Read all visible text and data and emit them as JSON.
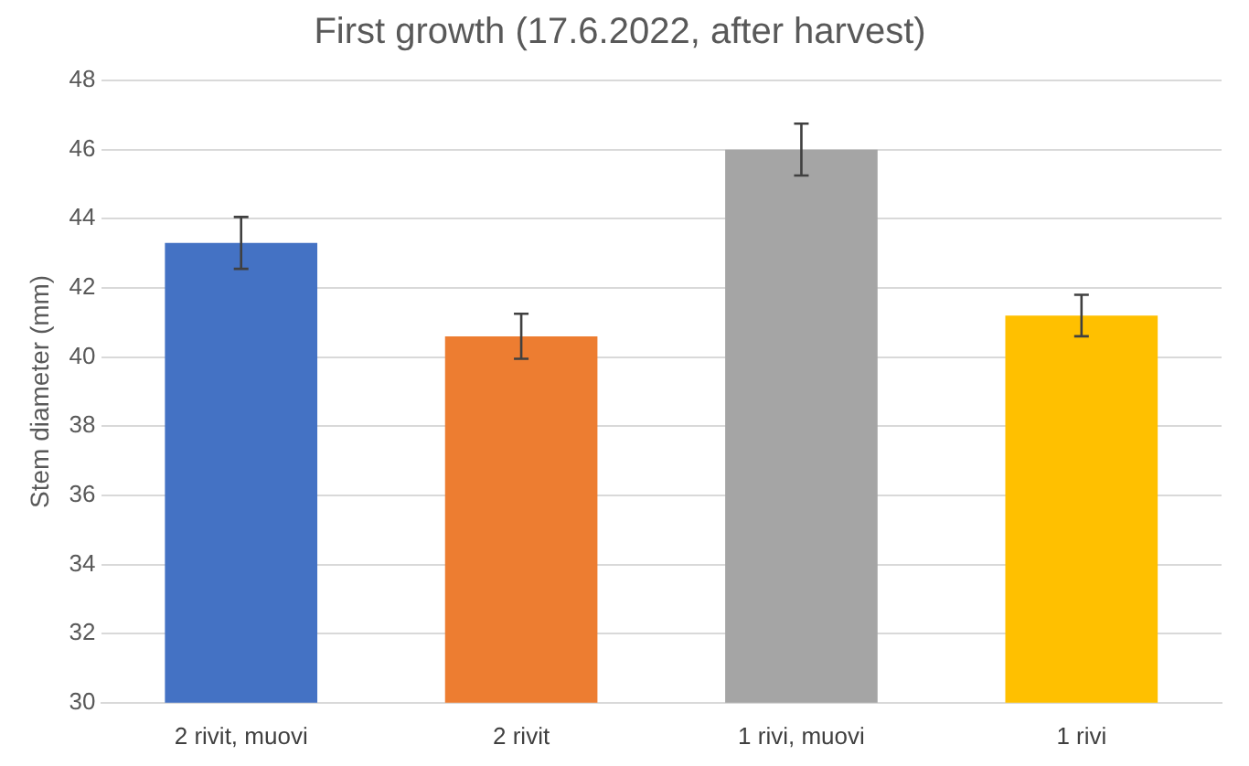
{
  "chart_data": {
    "type": "bar",
    "title": "First growth (17.6.2022, after harvest)",
    "ylabel": "Stem diameter (mm)",
    "categories": [
      "2 rivit, muovi",
      "2 rivit",
      "1 rivi, muovi",
      "1 rivi"
    ],
    "values": [
      43.3,
      40.6,
      46.0,
      41.2
    ],
    "colors": [
      "#4472c4",
      "#ed7d31",
      "#a5a5a5",
      "#ffc000"
    ],
    "errors": [
      0.75,
      0.65,
      0.75,
      0.6
    ],
    "ylim": [
      30,
      48
    ],
    "yticks": [
      30,
      32,
      34,
      36,
      38,
      40,
      42,
      44,
      46,
      48
    ],
    "grid": "y",
    "legend": false
  }
}
